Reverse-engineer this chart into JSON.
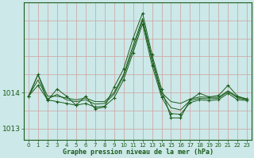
{
  "title": "Graphe pression niveau de la mer (hPa)",
  "background_color": "#cce8e8",
  "line_color": "#1a5c1a",
  "grid_color": "#aacccc",
  "x_ticks": [
    0,
    1,
    2,
    3,
    4,
    5,
    6,
    7,
    8,
    9,
    10,
    11,
    12,
    13,
    14,
    15,
    16,
    17,
    18,
    19,
    20,
    21,
    22,
    23
  ],
  "ylim": [
    1012.7,
    1016.5
  ],
  "yticks": [
    1013,
    1014
  ],
  "series": [
    [
      1013.9,
      1014.5,
      1013.9,
      1013.9,
      1013.85,
      1013.8,
      1013.85,
      1013.75,
      1013.75,
      1014.0,
      1014.5,
      1015.3,
      1016.05,
      1014.95,
      1014.0,
      1013.75,
      1013.7,
      1013.82,
      1013.88,
      1013.87,
      1013.87,
      1014.05,
      1013.88,
      1013.82
    ],
    [
      1013.9,
      1014.2,
      1013.8,
      1013.75,
      1013.7,
      1013.65,
      1013.7,
      1013.6,
      1013.62,
      1013.85,
      1014.35,
      1015.1,
      1015.9,
      1014.75,
      1013.88,
      1013.42,
      1013.4,
      1013.72,
      1013.8,
      1013.78,
      1013.8,
      1013.98,
      1013.8,
      1013.78
    ],
    [
      1013.9,
      1014.5,
      1013.78,
      1014.1,
      1013.9,
      1013.65,
      1013.9,
      1013.55,
      1013.6,
      1014.15,
      1014.65,
      1015.5,
      1016.2,
      1015.05,
      1014.1,
      1013.3,
      1013.3,
      1013.8,
      1013.98,
      1013.88,
      1013.92,
      1014.2,
      1013.9,
      1013.82
    ],
    [
      1013.9,
      1014.35,
      1013.82,
      1013.95,
      1013.8,
      1013.75,
      1013.8,
      1013.68,
      1013.7,
      1013.95,
      1014.45,
      1015.2,
      1016.0,
      1014.88,
      1013.95,
      1013.58,
      1013.52,
      1013.78,
      1013.84,
      1013.83,
      1013.84,
      1014.03,
      1013.85,
      1013.8
    ]
  ]
}
